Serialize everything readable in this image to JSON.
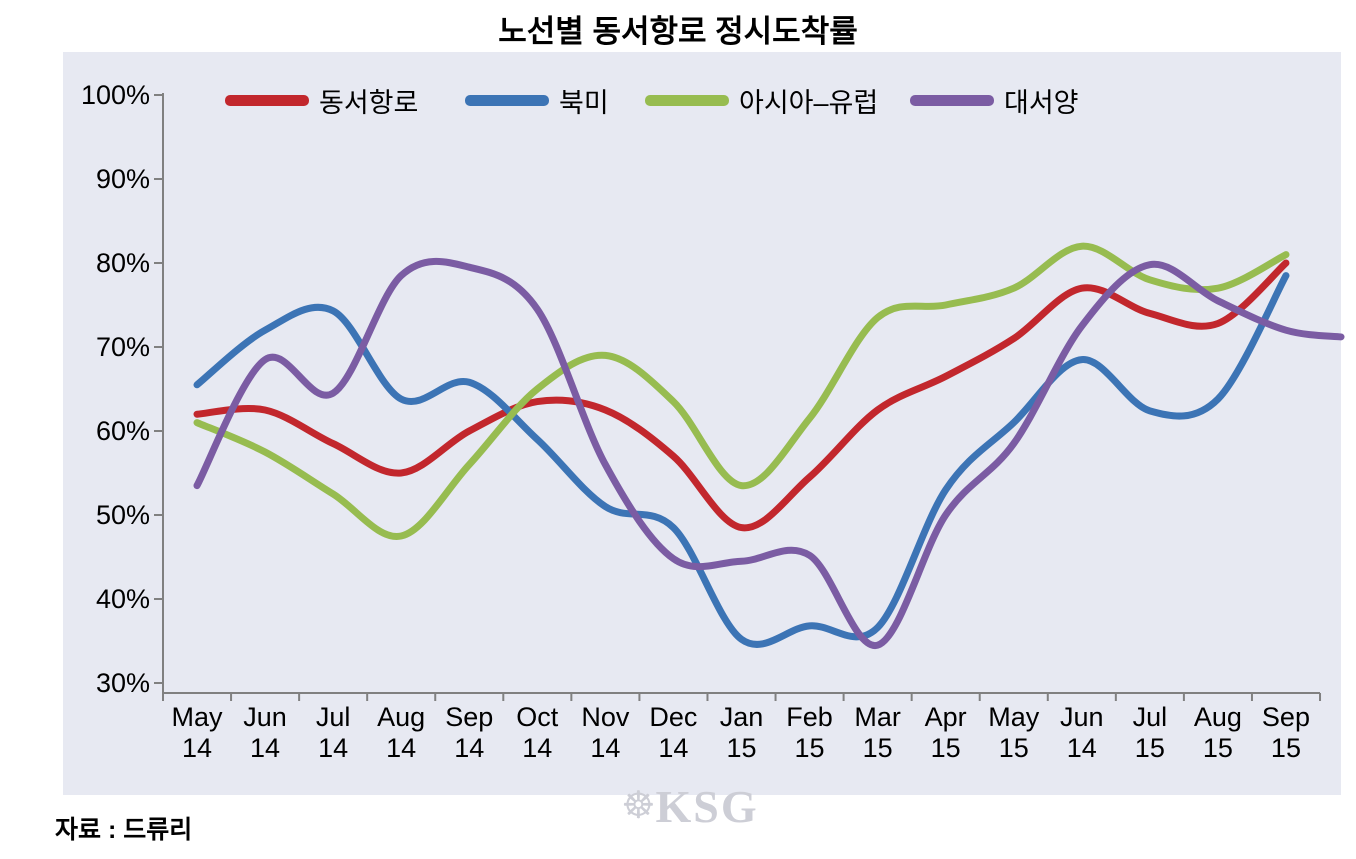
{
  "title": "노선별 동서항로 정시도착률",
  "source_note": "자료 : 드류리",
  "watermark": {
    "icon_glyph": "☸",
    "text": "KSG"
  },
  "colors": {
    "plot_background": "#e7e9f2",
    "axis": "#808080",
    "text": "#000000",
    "watermark": "#cdced6"
  },
  "chart_data": {
    "type": "line",
    "smoothed": true,
    "grid": false,
    "legend_position": "top-inside",
    "title": "노선별 동서항로 정시도착률",
    "categories": [
      "May 14",
      "Jun 14",
      "Jul 14",
      "Aug 14",
      "Sep 14",
      "Oct 14",
      "Nov 14",
      "Dec 14",
      "Jan 15",
      "Feb 15",
      "Mar 15",
      "Apr 15",
      "May 15",
      "Jun 14",
      "Jul 15",
      "Aug 15",
      "Sep 15"
    ],
    "x_tick_months": [
      "May",
      "Jun",
      "Jul",
      "Aug",
      "Sep",
      "Oct",
      "Nov",
      "Dec",
      "Jan",
      "Feb",
      "Mar",
      "Apr",
      "May",
      "Jun",
      "Jul",
      "Aug",
      "Sep"
    ],
    "x_tick_years": [
      "14",
      "14",
      "14",
      "14",
      "14",
      "14",
      "14",
      "14",
      "15",
      "15",
      "15",
      "15",
      "15",
      "14",
      "15",
      "15",
      "15"
    ],
    "y_axis": {
      "min": 30,
      "max": 100,
      "step": 10,
      "unit": "%",
      "tick_labels": [
        "100%",
        "90%",
        "80%",
        "70%",
        "60%",
        "50%",
        "40%",
        "30%"
      ]
    },
    "series": [
      {
        "name": "동서항로",
        "color": "#c2272d",
        "values": [
          62,
          62.5,
          58.5,
          55,
          60,
          63.5,
          62.5,
          57,
          48.5,
          54.5,
          62.5,
          66.5,
          71,
          77,
          74,
          72.8,
          80
        ]
      },
      {
        "name": "북미",
        "color": "#3c74b5",
        "values": [
          65.5,
          72,
          74.3,
          63.8,
          65.8,
          59,
          51,
          48.5,
          35.2,
          36.8,
          36.6,
          53,
          61,
          68.5,
          62.4,
          63.8,
          78.5
        ]
      },
      {
        "name": "아시아–유럽",
        "color": "#97bc50",
        "values": [
          61,
          57.5,
          52.5,
          47.5,
          56,
          65,
          69,
          63.5,
          53.5,
          61.5,
          73.5,
          75,
          77,
          82,
          78,
          77,
          81
        ]
      },
      {
        "name": "대서양",
        "color": "#7b5ca3",
        "values": [
          53.5,
          68.5,
          64.5,
          78.5,
          79.5,
          74.5,
          56,
          44.8,
          44.5,
          45.2,
          34.5,
          50,
          58.5,
          72.5,
          79.8,
          75.5,
          72
        ],
        "extends_to_right_edge_value": 71.2
      }
    ]
  }
}
